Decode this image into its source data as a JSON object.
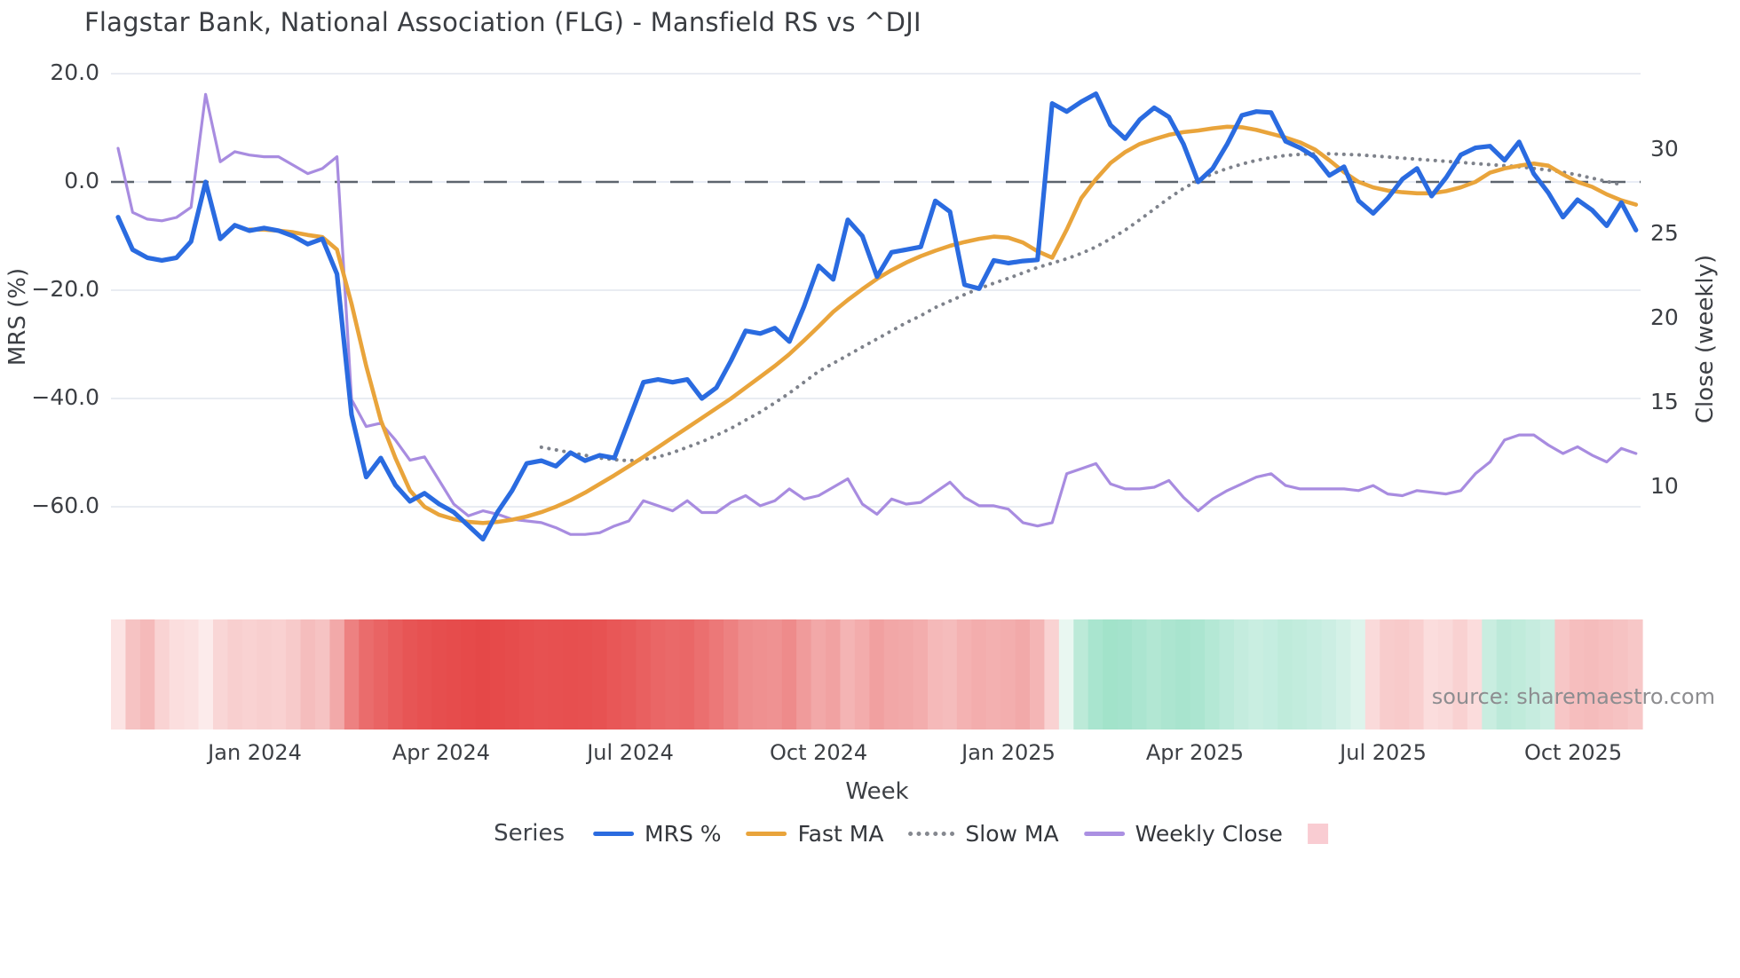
{
  "title": "Flagstar Bank, National Association (FLG) - Mansfield RS vs ^DJI",
  "source": "source: sharemaestro.com",
  "axes": {
    "left": {
      "title": "MRS (%)",
      "ticks": [
        {
          "label": "20.0",
          "value": 20
        },
        {
          "label": "0.0",
          "value": 0
        },
        {
          "label": "−20.0",
          "value": -20
        },
        {
          "label": "−40.0",
          "value": -40
        },
        {
          "label": "−60.0",
          "value": -60
        }
      ]
    },
    "right": {
      "title": "Close (weekly)",
      "ticks": [
        {
          "label": "30",
          "value": 30
        },
        {
          "label": "25",
          "value": 25
        },
        {
          "label": "20",
          "value": 20
        },
        {
          "label": "15",
          "value": 15
        },
        {
          "label": "10",
          "value": 10
        }
      ]
    },
    "x": {
      "title": "Week",
      "ticks": [
        {
          "label": "Jan 2024",
          "week": 9.37
        },
        {
          "label": "Apr 2024",
          "week": 22.14
        },
        {
          "label": "Jul 2024",
          "week": 35.1
        },
        {
          "label": "Oct 2024",
          "week": 48.0
        },
        {
          "label": "Jan 2025",
          "week": 61.01
        },
        {
          "label": "Apr 2025",
          "week": 73.78
        },
        {
          "label": "Jul 2025",
          "week": 86.68
        },
        {
          "label": "Oct 2025",
          "week": 99.7
        }
      ]
    }
  },
  "legend": {
    "title": "Series",
    "items": [
      {
        "label": "MRS %",
        "type": "line",
        "color": "#2b6bdf"
      },
      {
        "label": "Fast MA",
        "type": "line",
        "color": "#e9a43b"
      },
      {
        "label": "Slow MA",
        "type": "dotted",
        "color": "#85888f"
      },
      {
        "label": "Weekly Close",
        "type": "line",
        "color": "#ab90e2"
      },
      {
        "label": "",
        "type": "square",
        "color": "#f9ccd2"
      }
    ]
  },
  "chart_data": {
    "type": "line",
    "title": "Flagstar Bank, National Association (FLG) - Mansfield RS vs ^DJI",
    "xlabel": "Week",
    "ylabel_left": "MRS (%)",
    "ylabel_right": "Close (weekly)",
    "x_range_weekly": "Nov 2023 to Nov 2025, one point per week",
    "left_ylim": [
      -68,
      24
    ],
    "right_ylim": [
      7.5,
      35
    ],
    "grid": "horizontal-left-ticks-only",
    "zero_line": {
      "axis": "left",
      "value": 0,
      "style": "dashed",
      "color": "#5d646e"
    },
    "series": [
      {
        "name": "MRS %",
        "axis": "left",
        "color": "#2a6be0",
        "width": 5.2,
        "style": "solid",
        "values": [
          -6.5,
          -12.5,
          -14,
          -14.5,
          -14,
          -11,
          0,
          -10.5,
          -8,
          -9,
          -8.5,
          -9,
          -10,
          -11.5,
          -10.5,
          -17,
          -43,
          -54.5,
          -51,
          -56,
          -59,
          -57.5,
          -59.5,
          -61,
          -63.5,
          -66,
          -61,
          -57,
          -52,
          -51.5,
          -52.5,
          -50,
          -51.5,
          -50.5,
          -51,
          -44,
          -37,
          -36.5,
          -37,
          -36.5,
          -40,
          -38,
          -33,
          -27.5,
          -28,
          -27,
          -29.5,
          -23,
          -15.5,
          -18,
          -7,
          -10,
          -17.5,
          -13,
          -12.5,
          -12,
          -3.5,
          -5.5,
          -19,
          -19.7,
          -14.5,
          -15,
          -14.6,
          -14.4,
          14.5,
          13,
          14.8,
          16.3,
          10.5,
          8,
          11.5,
          13.7,
          12,
          7,
          0,
          2.5,
          7,
          12.3,
          13,
          12.8,
          7.5,
          6.3,
          4.6,
          1.2,
          2.8,
          -3.5,
          -5.8,
          -3,
          0.5,
          2.5,
          -2.6,
          0.8,
          5,
          6.3,
          6.6,
          4,
          7.4,
          1.5,
          -2,
          -6.5,
          -3.3,
          -5.2,
          -8.1,
          -3.8,
          -8.9
        ]
      },
      {
        "name": "Fast MA",
        "axis": "left",
        "color": "#e9a43b",
        "width": 4.6,
        "style": "solid",
        "values": [
          null,
          null,
          null,
          null,
          null,
          null,
          null,
          null,
          null,
          -8.8,
          -8.8,
          -9,
          -9.3,
          -9.8,
          -10.2,
          -12.5,
          -22.5,
          -34,
          -44,
          -51,
          -57,
          -60,
          -61.5,
          -62.3,
          -62.8,
          -63,
          -62.8,
          -62.4,
          -61.8,
          -61,
          -60,
          -58.8,
          -57.4,
          -55.8,
          -54.2,
          -52.5,
          -50.8,
          -49,
          -47.2,
          -45.4,
          -43.6,
          -41.8,
          -40,
          -38,
          -36,
          -34,
          -31.8,
          -29.3,
          -26.7,
          -24,
          -21.8,
          -19.8,
          -17.9,
          -16.3,
          -14.9,
          -13.7,
          -12.7,
          -11.8,
          -11.1,
          -10.5,
          -10.1,
          -10.3,
          -11.2,
          -12.8,
          -14,
          -8.8,
          -3,
          0.5,
          3.5,
          5.5,
          7,
          7.9,
          8.7,
          9.2,
          9.5,
          9.9,
          10.2,
          10.1,
          9.6,
          8.9,
          8.2,
          7.3,
          6,
          4,
          1.8,
          0,
          -1,
          -1.6,
          -1.9,
          -2.1,
          -2.1,
          -1.7,
          -1,
          0,
          1.7,
          2.5,
          3,
          3.4,
          3,
          1.4,
          0,
          -0.9,
          -2.3,
          -3.4,
          -4.2
        ]
      },
      {
        "name": "Slow MA",
        "axis": "left",
        "color": "#7e828b",
        "width": 4,
        "style": "dotted",
        "values": [
          null,
          null,
          null,
          null,
          null,
          null,
          null,
          null,
          null,
          null,
          null,
          null,
          null,
          null,
          null,
          null,
          null,
          null,
          null,
          null,
          null,
          null,
          null,
          null,
          null,
          null,
          null,
          null,
          null,
          -49,
          -49.5,
          -50,
          -50.5,
          -51,
          -51.3,
          -51.5,
          -51.3,
          -50.8,
          -50,
          -49,
          -48,
          -46.8,
          -45.5,
          -44,
          -42.5,
          -40.8,
          -39,
          -37,
          -35,
          -33.5,
          -32,
          -30.5,
          -29,
          -27.5,
          -26,
          -24.7,
          -23.2,
          -22,
          -20.8,
          -19.7,
          -18.7,
          -17.8,
          -16.8,
          -15.8,
          -15,
          -14.2,
          -13.2,
          -12,
          -10.5,
          -8.9,
          -7,
          -5,
          -3,
          -1.2,
          0.3,
          1.5,
          2.5,
          3.3,
          4,
          4.5,
          4.9,
          5.1,
          5.2,
          5.2,
          5.1,
          5,
          4.8,
          4.6,
          4.4,
          4.2,
          4,
          3.8,
          3.6,
          3.4,
          3.2,
          3,
          2.8,
          2.5,
          2.2,
          1.8,
          1.3,
          0.7,
          0.1,
          -0.5,
          null
        ]
      },
      {
        "name": "Weekly Close",
        "axis": "right",
        "color": "#a88ce0",
        "width": 3.2,
        "style": "solid",
        "values": [
          30.1,
          26.3,
          25.9,
          25.8,
          26,
          26.6,
          33.3,
          29.3,
          29.9,
          29.7,
          29.6,
          29.6,
          29.1,
          28.6,
          28.9,
          29.6,
          15.2,
          13.6,
          13.8,
          12.8,
          11.6,
          11.8,
          10.4,
          9,
          8.3,
          8.6,
          8.4,
          8.1,
          8,
          7.9,
          7.6,
          7.2,
          7.2,
          7.3,
          7.7,
          8,
          9.2,
          8.9,
          8.6,
          9.2,
          8.5,
          8.5,
          9.1,
          9.5,
          8.9,
          9.2,
          9.9,
          9.3,
          9.5,
          10,
          10.5,
          9,
          8.4,
          9.3,
          9,
          9.1,
          9.7,
          10.3,
          9.4,
          8.9,
          8.9,
          8.7,
          7.9,
          7.7,
          7.9,
          10.8,
          11.1,
          11.4,
          10.2,
          9.9,
          9.9,
          10,
          10.4,
          9.4,
          8.6,
          9.3,
          9.8,
          10.2,
          10.6,
          10.8,
          10.1,
          9.9,
          9.9,
          9.9,
          9.9,
          9.8,
          10.1,
          9.6,
          9.5,
          9.8,
          9.7,
          9.6,
          9.8,
          10.8,
          11.5,
          12.8,
          13.1,
          13.1,
          12.5,
          12,
          12.4,
          11.9,
          11.5,
          12.3,
          12
        ]
      }
    ],
    "heatmap": {
      "description": "weekly relative-strength heat strip below chart, red = weak, green = strong",
      "colors": [
        "#fce4e4",
        "#f6c3c3",
        "#f5baba",
        "#f9d3d3",
        "#fbdede",
        "#fbe1e1",
        "#fcebeb",
        "#f9d6d6",
        "#f8cfcf",
        "#f9d2d2",
        "#f8cfcf",
        "#f9d1d1",
        "#f7caca",
        "#f5bdbd",
        "#f6c3c3",
        "#f2a9a9",
        "#ed8181",
        "#ea6c6c",
        "#e96464",
        "#e85c5c",
        "#e75555",
        "#e75151",
        "#e64e4e",
        "#e64c4c",
        "#e64a4a",
        "#e54848",
        "#e64a4a",
        "#e64c4c",
        "#e74f4f",
        "#e75151",
        "#e75050",
        "#e74f4f",
        "#e75050",
        "#e75252",
        "#e85757",
        "#e85a5a",
        "#e96060",
        "#ea6666",
        "#ea6969",
        "#ea6767",
        "#eb6f6f",
        "#ec7878",
        "#ed8181",
        "#ee8d8d",
        "#ef9090",
        "#ef9292",
        "#ee8b8b",
        "#f09b9b",
        "#f2a8a8",
        "#f1a2a2",
        "#f4b4b4",
        "#f3acac",
        "#f1a0a0",
        "#f2a7a7",
        "#f2a9a9",
        "#f3adad",
        "#f5b9b9",
        "#f5bcbc",
        "#f4b2b2",
        "#f3adad",
        "#f3b0b0",
        "#f3aeae",
        "#f2a9a9",
        "#f4b5b5",
        "#f9d2d2",
        "#e9f7f1",
        "#bcead8",
        "#a9e5cf",
        "#a2e3ca",
        "#a4e3cc",
        "#abe5d0",
        "#b2e7d3",
        "#ace5d0",
        "#a8e4ce",
        "#abe5d0",
        "#b4e8d5",
        "#bceada",
        "#c4ecde",
        "#c9eee1",
        "#c5ede0",
        "#bfebdb",
        "#c2ecdd",
        "#c6ede0",
        "#cceee3",
        "#d4f1e7",
        "#def4ec",
        "#fadada",
        "#f8cccc",
        "#f8caca",
        "#f9cfcf",
        "#fbdddd",
        "#fadada",
        "#f9d1d1",
        "#fbdcdc",
        "#c9ede0",
        "#bce9d9",
        "#c0ebdb",
        "#c6ecdf",
        "#cceee2",
        "#f7c6c6",
        "#f6bebe",
        "#f5bcbc",
        "#f6bfbf",
        "#f6c2c2",
        "#f7c7c7"
      ]
    }
  }
}
